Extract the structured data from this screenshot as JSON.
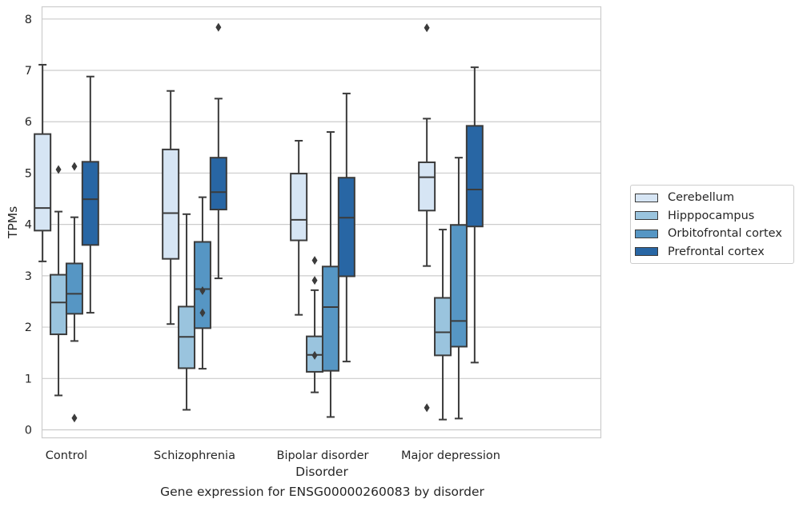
{
  "chart_data": {
    "type": "box",
    "title": "",
    "caption": "Gene expression for ENSG00000260083 by disorder",
    "xlabel": "Disorder",
    "ylabel": "TPMs",
    "ylim": [
      -0.17,
      8.2
    ],
    "yticks": [
      0,
      1,
      2,
      3,
      4,
      5,
      6,
      7,
      8
    ],
    "grid": "horizontal",
    "legend_position": "right",
    "categories": [
      "Control",
      "Schizophrenia",
      "Bipolar disorder",
      "Major depression"
    ],
    "series": [
      {
        "name": "Cerebellum",
        "color": "#d6e5f4",
        "boxes": [
          {
            "q1": 3.88,
            "median": 4.32,
            "q3": 5.76,
            "whislo": 3.28,
            "whishi": 7.11,
            "fliers": []
          },
          {
            "q1": 3.33,
            "median": 4.22,
            "q3": 5.46,
            "whislo": 2.06,
            "whishi": 6.6,
            "fliers": []
          },
          {
            "q1": 3.69,
            "median": 4.09,
            "q3": 4.99,
            "whislo": 2.24,
            "whishi": 5.63,
            "fliers": []
          },
          {
            "q1": 4.27,
            "median": 4.92,
            "q3": 5.21,
            "whislo": 3.19,
            "whishi": 6.06,
            "fliers": [
              7.83,
              0.43
            ]
          }
        ]
      },
      {
        "name": "Hipppocampus",
        "color": "#9ac4de",
        "boxes": [
          {
            "q1": 1.86,
            "median": 2.48,
            "q3": 3.02,
            "whislo": 0.67,
            "whishi": 4.25,
            "fliers": [
              5.07
            ]
          },
          {
            "q1": 1.2,
            "median": 1.81,
            "q3": 2.4,
            "whislo": 0.39,
            "whishi": 4.2,
            "fliers": []
          },
          {
            "q1": 1.13,
            "median": 1.46,
            "q3": 1.82,
            "whislo": 0.73,
            "whishi": 2.72,
            "fliers": [
              1.45,
              2.91,
              3.3
            ]
          },
          {
            "q1": 1.45,
            "median": 1.9,
            "q3": 2.57,
            "whislo": 0.2,
            "whishi": 3.9,
            "fliers": []
          }
        ]
      },
      {
        "name": "Orbitofrontal cortex",
        "color": "#5696c4",
        "boxes": [
          {
            "q1": 2.26,
            "median": 2.65,
            "q3": 3.24,
            "whislo": 1.73,
            "whishi": 4.14,
            "fliers": [
              5.13,
              0.23
            ]
          },
          {
            "q1": 1.98,
            "median": 2.74,
            "q3": 3.66,
            "whislo": 1.19,
            "whishi": 4.53,
            "fliers": [
              2.71,
              2.28
            ]
          },
          {
            "q1": 1.15,
            "median": 2.39,
            "q3": 3.18,
            "whislo": 0.25,
            "whishi": 5.8,
            "fliers": []
          },
          {
            "q1": 1.62,
            "median": 2.12,
            "q3": 3.99,
            "whislo": 0.22,
            "whishi": 5.3,
            "fliers": []
          }
        ]
      },
      {
        "name": "Prefrontal cortex",
        "color": "#2866a4",
        "boxes": [
          {
            "q1": 3.6,
            "median": 4.49,
            "q3": 5.22,
            "whislo": 2.28,
            "whishi": 6.88,
            "fliers": []
          },
          {
            "q1": 4.29,
            "median": 4.63,
            "q3": 5.3,
            "whislo": 2.95,
            "whishi": 6.45,
            "fliers": [
              7.84
            ]
          },
          {
            "q1": 2.99,
            "median": 4.13,
            "q3": 4.91,
            "whislo": 1.33,
            "whishi": 6.55,
            "fliers": []
          },
          {
            "q1": 3.96,
            "median": 4.68,
            "q3": 5.92,
            "whislo": 1.31,
            "whishi": 7.06,
            "fliers": []
          }
        ]
      }
    ]
  }
}
